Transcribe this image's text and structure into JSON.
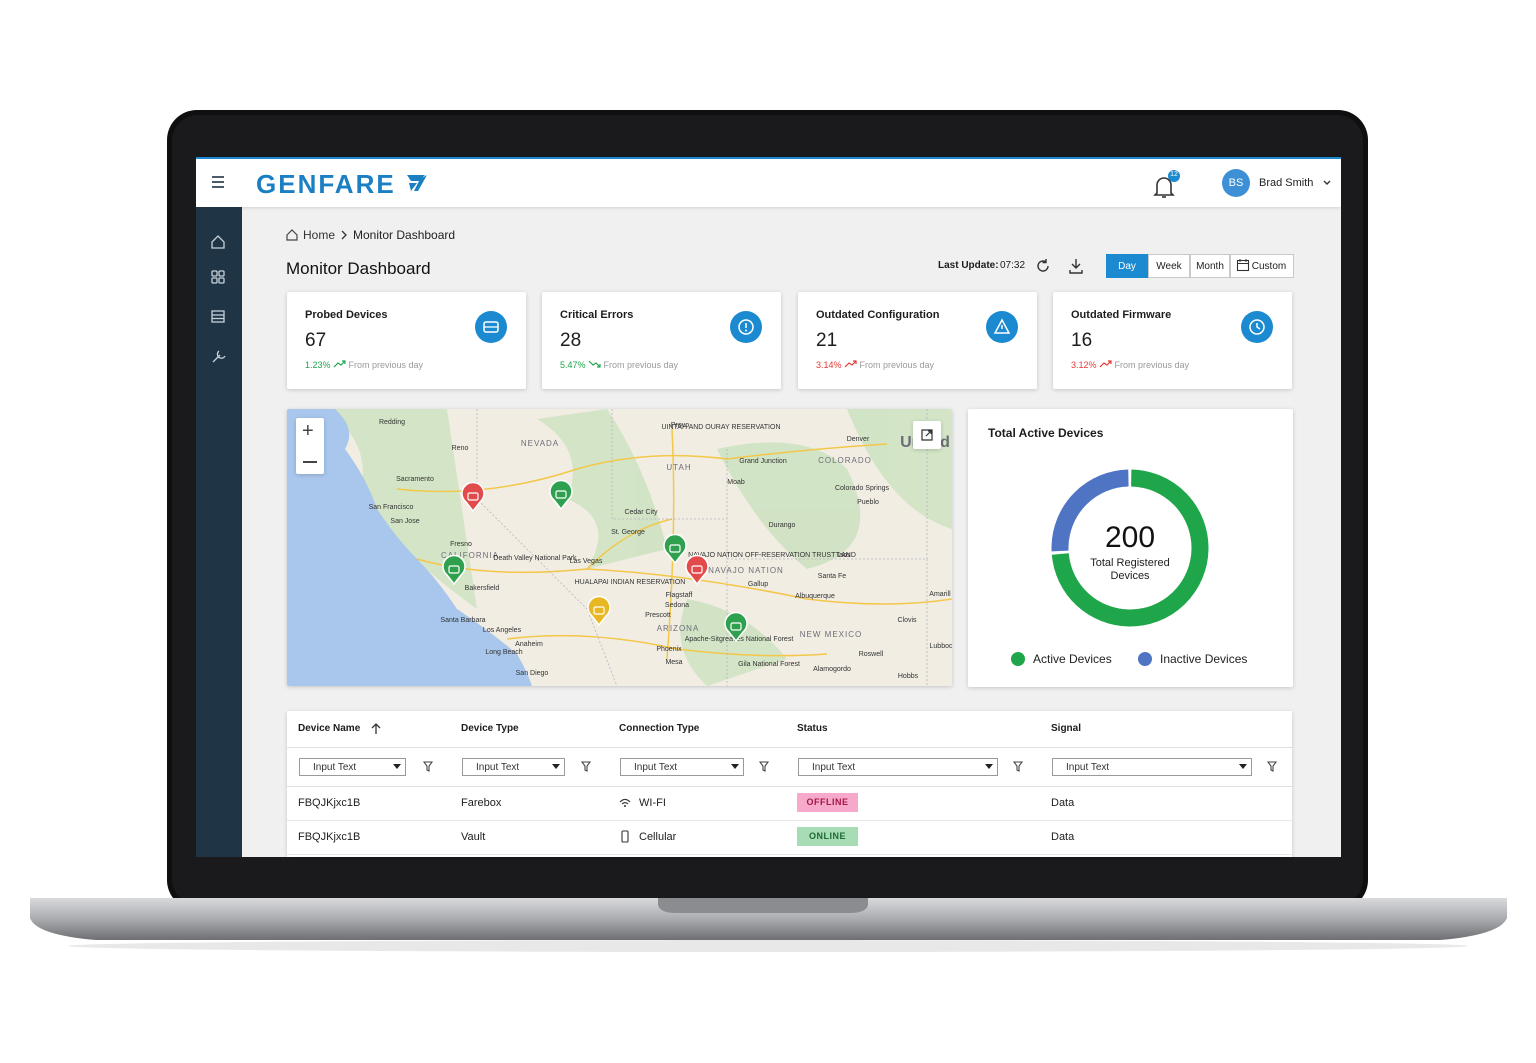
{
  "header": {
    "logo": "GENFARE",
    "notifications": 12,
    "user_initials": "BS",
    "user_name": "Brad Smith"
  },
  "breadcrumb": [
    "Home",
    "Monitor Dashboard"
  ],
  "title": "Monitor Dashboard",
  "last_update": {
    "label": "Last Update:",
    "time": "07:32"
  },
  "ranges": [
    "Day",
    "Week",
    "Month",
    "Custom"
  ],
  "stats": [
    {
      "title": "Probed Devices",
      "value": 67,
      "change": "1.23%",
      "trend": "up",
      "change_color": "#1fa64a",
      "note": "From previous day"
    },
    {
      "title": "Critical Errors",
      "value": 28,
      "change": "5.47%",
      "trend": "down",
      "change_color": "#1fa64a",
      "note": "From previous day"
    },
    {
      "title": "Outdated Configuration",
      "value": 21,
      "change": "3.14%",
      "trend": "up",
      "change_color": "#e53935",
      "note": "From previous day"
    },
    {
      "title": "Outdated Firmware",
      "value": 16,
      "change": "3.12%",
      "trend": "up",
      "change_color": "#e53935",
      "note": "From previous day"
    }
  ],
  "map": {
    "labels": [
      "Redding",
      "Reno",
      "NEVADA",
      "Provo",
      "UINTAH AND OURAY RESERVATION",
      "Denver",
      "United",
      "UTAH",
      "Grand Junction",
      "COLORADO",
      "Moab",
      "Colorado Springs",
      "Pueblo",
      "Sacramento",
      "San Francisco",
      "San Jose",
      "Cedar City",
      "Durango",
      "St. George",
      "Fresno",
      "CALIFORNIA",
      "Death Valley National Park",
      "Las Vegas",
      "NAVAJO NATION OFF-RESERVATION TRUST LAND",
      "Taos",
      "NAVAJO NATION",
      "Santa Fe",
      "HUALAPAI INDIAN RESERVATION",
      "Gallup",
      "Albuquerque",
      "Amarill",
      "Bakersfield",
      "Flagstaff",
      "Sedona",
      "Prescott",
      "Santa Barbara",
      "Los Angeles",
      "ARIZONA",
      "Apache-Sitgreaves National Forest",
      "Clovis",
      "NEW MEXICO",
      "Anaheim",
      "Long Beach",
      "Phoenix",
      "Mesa",
      "Roswell",
      "Lubboc",
      "Gila National Forest",
      "San Diego",
      "Alamogordo",
      "Hobbs"
    ]
  },
  "donut": {
    "title": "Total Active Devices",
    "total": 200,
    "center_label": [
      "Total Registered",
      "Devices"
    ],
    "segments": [
      {
        "name": "Active Devices",
        "value": 148,
        "color": "#1fa64a"
      },
      {
        "name": "Inactive Devices",
        "value": 52,
        "color": "#4f74c4"
      }
    ]
  },
  "table": {
    "columns": [
      "Device Name",
      "Device Type",
      "Connection Type",
      "Status",
      "Signal"
    ],
    "filter_placeholder": "Input Text",
    "rows": [
      [
        "FBQJKjxc1B",
        "Farebox",
        "WI-FI",
        "OFFLINE",
        "Data"
      ],
      [
        "FBQJKjxc1B",
        "Vault",
        "Cellular",
        "ONLINE",
        "Data"
      ]
    ]
  }
}
